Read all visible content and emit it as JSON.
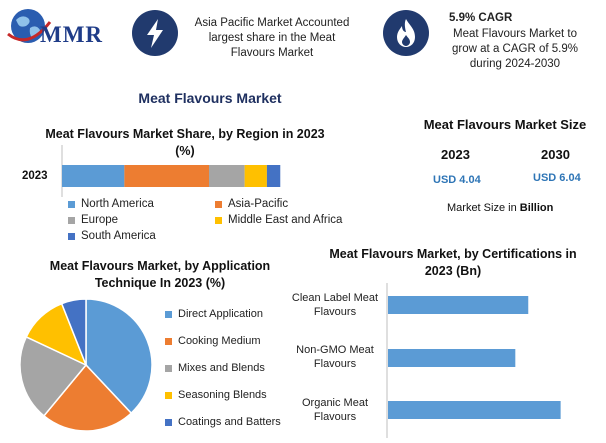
{
  "brand": {
    "logo_text": "MMR"
  },
  "highlights": [
    {
      "icon": "lightning-icon",
      "text": "Asia Pacific Market Accounted largest share in the Meat Flavours Market"
    },
    {
      "icon": "flame-icon",
      "title": "5.9% CAGR",
      "text": "Meat Flavours Market to grow at a CAGR of 5.9% during 2024-2030"
    }
  ],
  "main_title": "Meat Flavours Market",
  "colors": {
    "primary": "#213a6e",
    "blue": "#5b9bd5",
    "orange": "#ed7d31",
    "gray": "#a5a5a5",
    "yellow": "#ffc000",
    "darkblue": "#4472c4"
  },
  "market_size": {
    "title": "Meat Flavours Market Size",
    "years": [
      "2023",
      "2030"
    ],
    "values": [
      "USD 4.04",
      "USD 6.04"
    ],
    "caption_prefix": "Market Size in ",
    "caption_unit": "Billion"
  },
  "chart_data": [
    {
      "type": "bar",
      "orientation": "horizontal",
      "stacked": true,
      "title": "Meat Flavours Market Share, by Region in 2023 (%)",
      "categories": [
        "2023"
      ],
      "series": [
        {
          "name": "North America",
          "color": "#5b9bd5",
          "values": [
            28
          ]
        },
        {
          "name": "Asia-Pacific",
          "color": "#ed7d31",
          "values": [
            38
          ]
        },
        {
          "name": "Europe",
          "color": "#a5a5a5",
          "values": [
            16
          ]
        },
        {
          "name": "Middle East and Africa",
          "color": "#ffc000",
          "values": [
            10
          ]
        },
        {
          "name": "South America",
          "color": "#4472c4",
          "values": [
            6
          ]
        }
      ],
      "xlim": [
        0,
        110
      ],
      "legend": "bottom"
    },
    {
      "type": "pie",
      "title": "Meat Flavours Market, by Application Technique In 2023 (%)",
      "labels": [
        "Direct Application",
        "Cooking Medium",
        "Mixes and Blends",
        "Seasoning Blends",
        "Coatings and Batters"
      ],
      "values": [
        38,
        23,
        21,
        12,
        6
      ],
      "colors": [
        "#5b9bd5",
        "#ed7d31",
        "#a5a5a5",
        "#ffc000",
        "#4472c4"
      ],
      "legend": "right"
    },
    {
      "type": "bar",
      "orientation": "horizontal",
      "title": "Meat Flavours Market, by Certifications in 2023 (Bn)",
      "categories": [
        "Clean Label Meat Flavours",
        "Non-GMO Meat Flavours",
        "Organic Meat Flavours"
      ],
      "values": [
        1.3,
        1.18,
        1.6
      ],
      "xlim": [
        0,
        1.9
      ],
      "color": "#5b9bd5"
    }
  ]
}
